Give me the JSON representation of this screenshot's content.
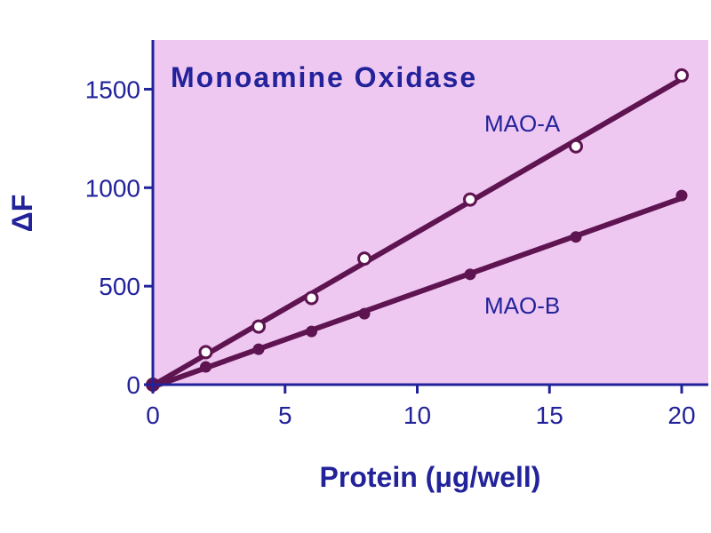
{
  "chart_data": {
    "type": "line",
    "title": "Monoamine Oxidase",
    "xlabel": "Protein (μg/well)",
    "ylabel": "ΔF",
    "xlim": [
      0,
      20
    ],
    "ylim": [
      0,
      1750
    ],
    "xticks": [
      0,
      5,
      10,
      15,
      20
    ],
    "yticks": [
      0,
      500,
      1000,
      1500
    ],
    "grid": false,
    "plot_background": "#efc8f2",
    "axis_color": "#22229a",
    "series": [
      {
        "name": "MAO-A",
        "marker": "open-circle",
        "color": "#5e1450",
        "x": [
          0,
          2,
          4,
          6,
          8,
          12,
          16,
          20
        ],
        "y": [
          0,
          165,
          295,
          440,
          640,
          940,
          1210,
          1570
        ]
      },
      {
        "name": "MAO-B",
        "marker": "filled-circle",
        "color": "#5e1450",
        "x": [
          0,
          2,
          4,
          6,
          8,
          12,
          16,
          20
        ],
        "y": [
          0,
          90,
          180,
          270,
          360,
          560,
          750,
          960
        ]
      }
    ]
  }
}
